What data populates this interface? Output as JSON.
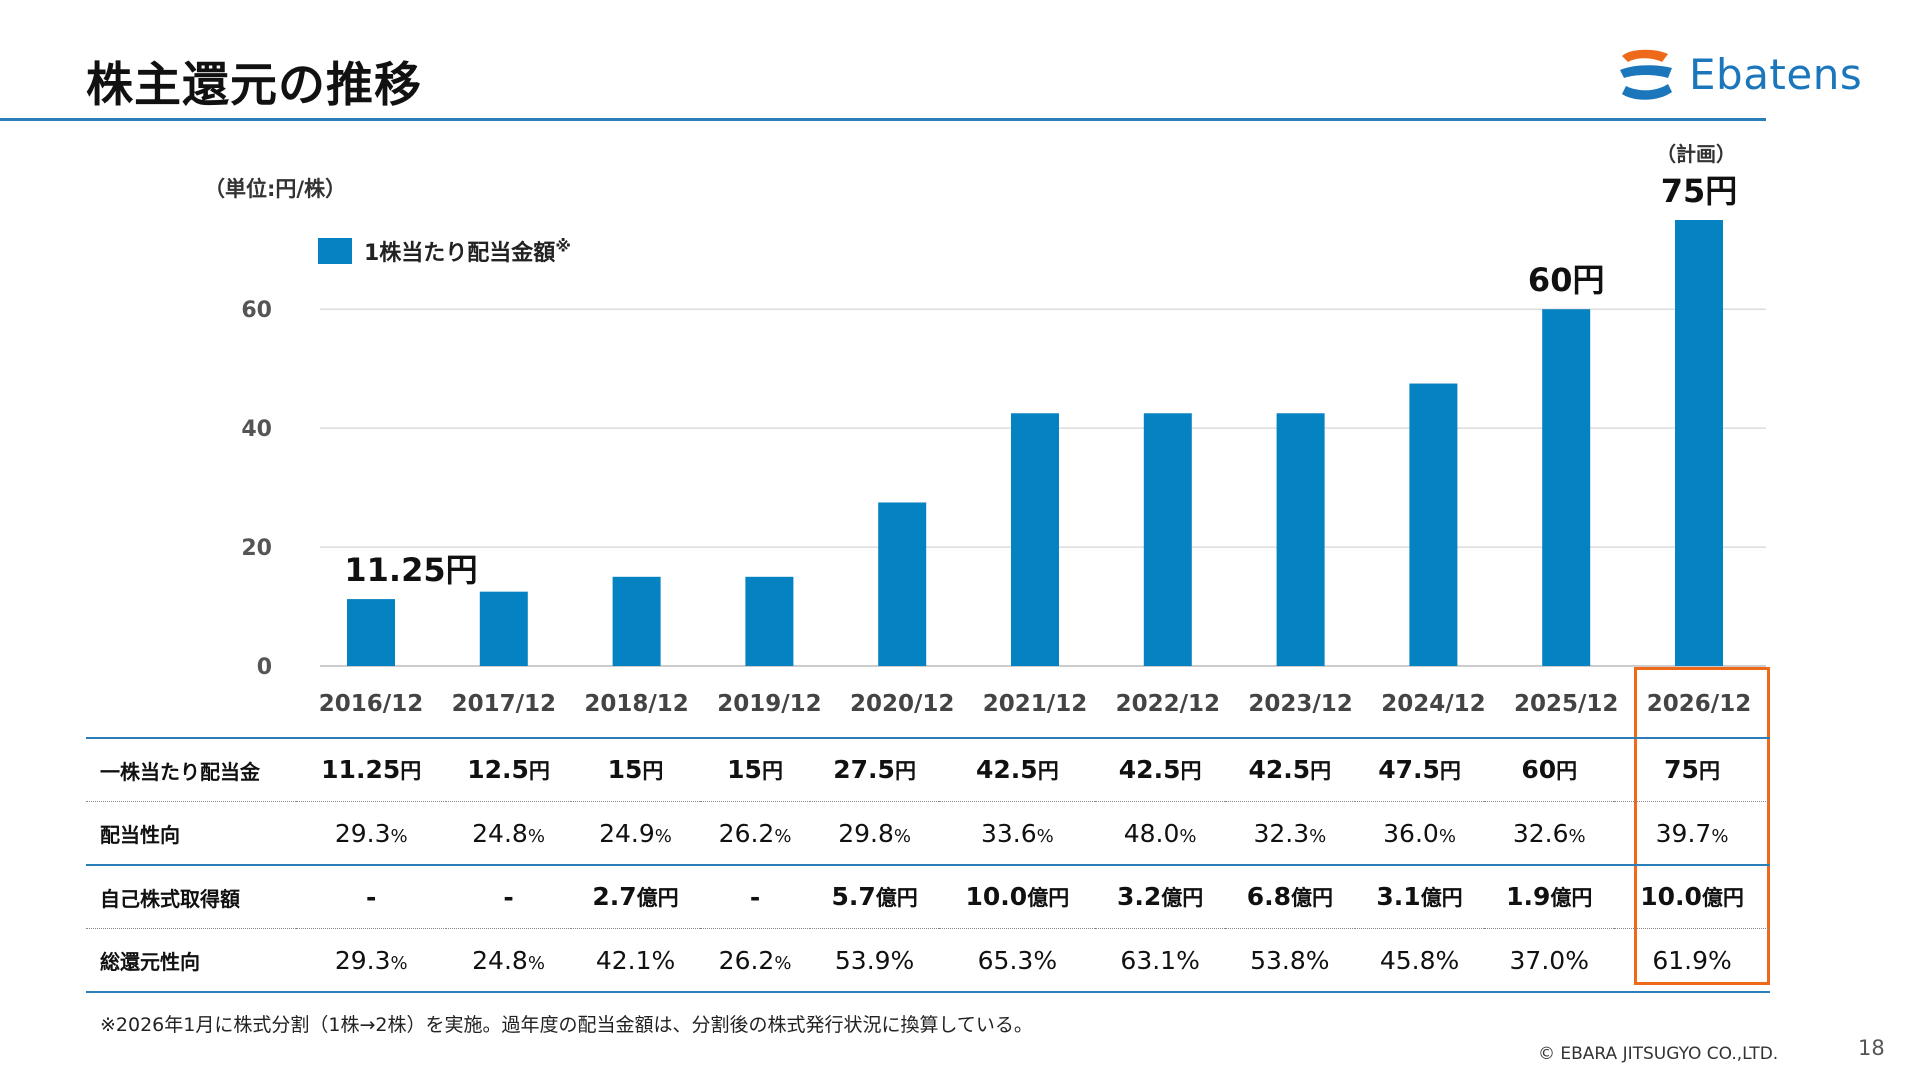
{
  "title": "株主還元の推移",
  "logo_text": "Ebatens",
  "unit_label": "（単位:円/株）",
  "plan_label": "（計画）",
  "legend": {
    "label": "1株当たり配当金額",
    "note": "※"
  },
  "colors": {
    "bar": "#0582c2",
    "rule": "#2a7fb8",
    "highlight": "#ee6a1a"
  },
  "chart_data": {
    "type": "bar",
    "categories": [
      "2016/12",
      "2017/12",
      "2018/12",
      "2019/12",
      "2020/12",
      "2021/12",
      "2022/12",
      "2023/12",
      "2024/12",
      "2025/12",
      "2026/12"
    ],
    "series": [
      {
        "name": "1株当たり配当金額",
        "values": [
          11.25,
          12.5,
          15,
          15,
          27.5,
          42.5,
          42.5,
          42.5,
          47.5,
          60,
          75
        ]
      }
    ],
    "yticks": [
      0,
      20,
      40,
      60
    ],
    "ylim": [
      0,
      75
    ],
    "grid": true,
    "legend_position": "top-left",
    "annotations": [
      {
        "index": 0,
        "text": "11.25円"
      },
      {
        "index": 9,
        "text": "60円"
      },
      {
        "index": 10,
        "text": "75円"
      }
    ]
  },
  "table": {
    "rows": [
      {
        "label": "一株当たり配当金",
        "cells": [
          {
            "v": "11.25",
            "u": "円"
          },
          {
            "v": "12.5",
            "u": "円"
          },
          {
            "v": "15",
            "u": "円"
          },
          {
            "v": "15",
            "u": "円"
          },
          {
            "v": "27.5",
            "u": "円"
          },
          {
            "v": "42.5",
            "u": "円"
          },
          {
            "v": "42.5",
            "u": "円"
          },
          {
            "v": "42.5",
            "u": "円"
          },
          {
            "v": "47.5",
            "u": "円"
          },
          {
            "v": "60",
            "u": "円"
          },
          {
            "v": "75",
            "u": "円"
          }
        ]
      },
      {
        "label": "配当性向",
        "cells": [
          {
            "v": "29.3",
            "u": "%"
          },
          {
            "v": "24.8",
            "u": "%"
          },
          {
            "v": "24.9",
            "u": "%"
          },
          {
            "v": "26.2",
            "u": "%"
          },
          {
            "v": "29.8",
            "u": "%"
          },
          {
            "v": "33.6",
            "u": "%"
          },
          {
            "v": "48.0",
            "u": "%"
          },
          {
            "v": "32.3",
            "u": "%"
          },
          {
            "v": "36.0",
            "u": "%"
          },
          {
            "v": "32.6",
            "u": "%"
          },
          {
            "v": "39.7",
            "u": "%"
          }
        ]
      },
      {
        "label": "自己株式取得額",
        "cells": [
          {
            "v": "-",
            "u": ""
          },
          {
            "v": "-",
            "u": ""
          },
          {
            "v": "2.7",
            "u": "億円"
          },
          {
            "v": "-",
            "u": ""
          },
          {
            "v": "5.7",
            "u": "億円"
          },
          {
            "v": "10.0",
            "u": "億円"
          },
          {
            "v": "3.2",
            "u": "億円"
          },
          {
            "v": "6.8",
            "u": "億円"
          },
          {
            "v": "3.1",
            "u": "億円"
          },
          {
            "v": "1.9",
            "u": "億円"
          },
          {
            "v": "10.0",
            "u": "億円"
          }
        ]
      },
      {
        "label": "総還元性向",
        "cells": [
          {
            "v": "29.3",
            "u": "%"
          },
          {
            "v": "24.8",
            "u": "%"
          },
          {
            "v": "42.1%",
            "u": ""
          },
          {
            "v": "26.2",
            "u": "%"
          },
          {
            "v": "53.9%",
            "u": ""
          },
          {
            "v": "65.3%",
            "u": ""
          },
          {
            "v": "63.1%",
            "u": ""
          },
          {
            "v": "53.8%",
            "u": ""
          },
          {
            "v": "45.8%",
            "u": ""
          },
          {
            "v": "37.0%",
            "u": ""
          },
          {
            "v": "61.9%",
            "u": ""
          }
        ]
      }
    ]
  },
  "footnote": "※2026年1月に株式分割（1株→2株）を実施。過年度の配当金額は、分割後の株式発行状況に換算している。",
  "copyright": "© EBARA JITSUGYO CO.,LTD.",
  "page_number": "18"
}
